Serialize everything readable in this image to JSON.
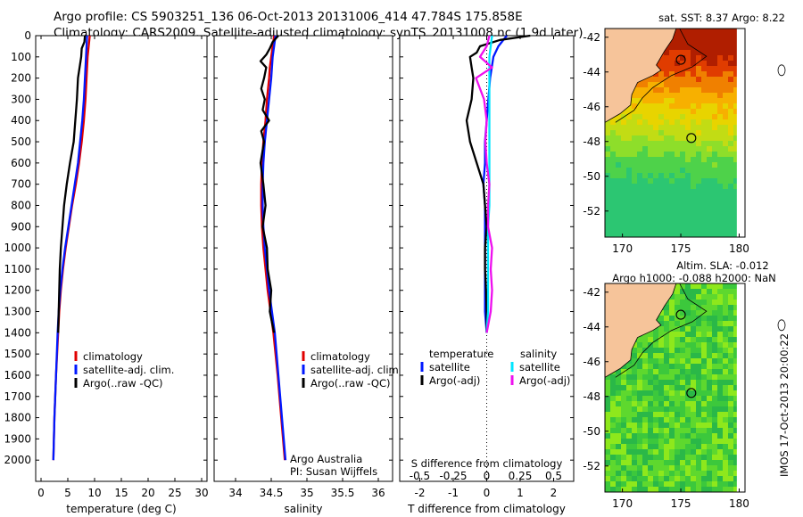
{
  "header": {
    "line1": "Argo profile: CS 5903251_136 06-Oct-2013 20131006_414 47.784S 175.858E",
    "line2": "Climatology: CARS2009. Satellite-adjusted climatology: synTS_20131008.nc (1.9d later)"
  },
  "colors": {
    "climatology": "#e00000",
    "satellite": "#0018ff",
    "argo": "#000000",
    "sal_satellite": "#00e6ff",
    "sal_argo": "#ee10ee"
  },
  "chart_data": [
    {
      "id": "temperature",
      "type": "line",
      "xlabel": "temperature (deg C)",
      "ylabel": "",
      "xlim": [
        -1,
        31
      ],
      "ylim": [
        2100,
        0
      ],
      "xticks": [
        0,
        5,
        10,
        15,
        20,
        25,
        30
      ],
      "yticks": [
        0,
        100,
        200,
        300,
        400,
        500,
        600,
        700,
        800,
        900,
        1000,
        1100,
        1200,
        1300,
        1400,
        1500,
        1600,
        1700,
        1800,
        1900,
        2000
      ],
      "legend": {
        "position": "bottom-center",
        "entries": [
          "climatology",
          "satellite-adj. clim.",
          "Argo(..raw -QC)"
        ]
      },
      "series": [
        {
          "name": "climatology",
          "y": [
            0,
            50,
            100,
            200,
            300,
            400,
            500,
            600,
            700,
            800,
            900,
            1000,
            1100,
            1200,
            1300,
            1400,
            1600,
            1800,
            2000
          ],
          "x": [
            9.1,
            8.9,
            8.7,
            8.5,
            8.3,
            8.0,
            7.6,
            7.1,
            6.5,
            5.8,
            5.2,
            4.6,
            4.1,
            3.7,
            3.4,
            3.2,
            2.8,
            2.5,
            2.3
          ]
        },
        {
          "name": "satellite-adj. clim.",
          "y": [
            0,
            50,
            100,
            200,
            300,
            400,
            500,
            600,
            700,
            800,
            900,
            1000,
            1100,
            1200,
            1300,
            1400,
            1600,
            1800,
            2000
          ],
          "x": [
            8.6,
            8.5,
            8.4,
            8.2,
            8.0,
            7.7,
            7.3,
            6.9,
            6.3,
            5.7,
            5.1,
            4.5,
            4.0,
            3.6,
            3.3,
            3.1,
            2.8,
            2.5,
            2.3
          ]
        },
        {
          "name": "Argo(..raw -QC)",
          "y": [
            0,
            30,
            60,
            100,
            150,
            200,
            300,
            400,
            500,
            600,
            700,
            800,
            900,
            1000,
            1100,
            1200,
            1300,
            1400
          ],
          "x": [
            8.2,
            8.1,
            7.6,
            7.5,
            7.2,
            6.9,
            6.7,
            6.4,
            6.1,
            5.4,
            4.8,
            4.3,
            4.0,
            3.7,
            3.5,
            3.4,
            3.3,
            3.2
          ]
        }
      ]
    },
    {
      "id": "salinity",
      "type": "line",
      "xlabel": "salinity",
      "xlim": [
        33.7,
        36.2
      ],
      "ylim": [
        2100,
        0
      ],
      "xticks": [
        34,
        34.5,
        35,
        35.5,
        36
      ],
      "legend": {
        "position": "bottom-center",
        "entries": [
          "climatology",
          "satellite-adj. clim.",
          "Argo(..raw -QC)"
        ]
      },
      "annotation": [
        "Argo Australia",
        "PI: Susan Wijffels"
      ],
      "series": [
        {
          "name": "climatology",
          "y": [
            0,
            50,
            100,
            150,
            200,
            300,
            400,
            500,
            600,
            700,
            800,
            900,
            1000,
            1100,
            1200,
            1300,
            1400,
            1600,
            1800,
            2000
          ],
          "x": [
            34.54,
            34.52,
            34.5,
            34.48,
            34.47,
            34.44,
            34.42,
            34.39,
            34.37,
            34.36,
            34.36,
            34.37,
            34.39,
            34.42,
            34.45,
            34.49,
            34.53,
            34.59,
            34.64,
            34.69
          ]
        },
        {
          "name": "satellite-adj. clim.",
          "y": [
            0,
            50,
            100,
            150,
            200,
            300,
            400,
            500,
            600,
            700,
            800,
            900,
            1000,
            1100,
            1200,
            1300,
            1400,
            1600,
            1800,
            2000
          ],
          "x": [
            34.56,
            34.54,
            34.52,
            34.51,
            34.5,
            34.47,
            34.44,
            34.41,
            34.39,
            34.38,
            34.38,
            34.39,
            34.41,
            34.44,
            34.47,
            34.51,
            34.55,
            34.6,
            34.65,
            34.7
          ]
        },
        {
          "name": "Argo(..raw -QC)",
          "y": [
            0,
            30,
            60,
            90,
            120,
            150,
            200,
            250,
            300,
            350,
            400,
            450,
            500,
            600,
            700,
            800,
            900,
            1000,
            1100,
            1200,
            1300,
            1400
          ],
          "x": [
            34.6,
            34.52,
            34.48,
            34.43,
            34.35,
            34.43,
            34.4,
            34.36,
            34.41,
            34.38,
            34.47,
            34.36,
            34.4,
            34.35,
            34.39,
            34.42,
            34.38,
            34.44,
            34.45,
            34.5,
            34.48,
            34.54
          ]
        }
      ]
    },
    {
      "id": "difference",
      "type": "line",
      "xlabel": "T difference from climatology",
      "xlabel_top": "S difference from climatology",
      "xlim": [
        -2.6,
        2.6
      ],
      "ylim": [
        2100,
        0
      ],
      "xticks": [
        -2,
        -1,
        0,
        1,
        2
      ],
      "xticks_top": [
        "-0.5",
        "-0.25",
        "0",
        "0.25",
        "0.5"
      ],
      "legend": {
        "position": "bottom-center",
        "headings": [
          "temperature",
          "salinity"
        ],
        "entries": [
          "satellite",
          "Argo(-adj)",
          "satellite",
          "Argo(-adj)"
        ]
      },
      "series": [
        {
          "name": "temperature satellite",
          "y": [
            0,
            50,
            100,
            200,
            300,
            400,
            500,
            600,
            700,
            800,
            900,
            1000,
            1100,
            1200,
            1300,
            1400
          ],
          "x": [
            0.6,
            0.35,
            0.2,
            0.1,
            0.05,
            0.0,
            -0.05,
            -0.05,
            -0.1,
            -0.05,
            -0.05,
            -0.05,
            -0.05,
            -0.05,
            -0.05,
            0.0
          ]
        },
        {
          "name": "temperature Argo(-adj)",
          "y": [
            0,
            20,
            50,
            80,
            100,
            150,
            200,
            300,
            400,
            500,
            600,
            700,
            800,
            900,
            1000,
            1100,
            1200,
            1300,
            1400
          ],
          "x": [
            1.3,
            0.4,
            -0.2,
            -0.3,
            -0.5,
            -0.45,
            -0.4,
            -0.45,
            -0.6,
            -0.5,
            -0.3,
            -0.1,
            -0.05,
            0.0,
            -0.05,
            -0.05,
            -0.02,
            0.0,
            0.0
          ]
        },
        {
          "name": "salinity satellite",
          "y": [
            0,
            50,
            100,
            200,
            300,
            400,
            500,
            600,
            700,
            800,
            900,
            1000,
            1100,
            1200,
            1300,
            1400
          ],
          "x": [
            0.04,
            0.03,
            0.02,
            0.02,
            0.02,
            0.02,
            0.02,
            0.02,
            0.02,
            0.02,
            0.01,
            0.01,
            0.01,
            0.01,
            0.01,
            0.0
          ]
        },
        {
          "name": "salinity Argo(-adj)",
          "y": [
            0,
            50,
            100,
            150,
            200,
            300,
            400,
            500,
            600,
            700,
            800,
            900,
            1000,
            1100,
            1200,
            1300,
            1400
          ],
          "x": [
            0.02,
            0.0,
            -0.05,
            0.04,
            -0.08,
            -0.02,
            0.0,
            -0.01,
            0.0,
            0.02,
            0.01,
            0.01,
            0.04,
            0.03,
            0.04,
            0.03,
            0.0
          ]
        }
      ]
    },
    {
      "id": "sst-map",
      "type": "heatmap",
      "title": "sat. SST: 8.37  Argo: 8.22",
      "xlim": [
        168.5,
        180.5
      ],
      "ylim": [
        -53.5,
        -41.5
      ],
      "xticks": [
        170,
        175,
        180
      ],
      "yticks": [
        -42,
        -44,
        -46,
        -48,
        -50,
        -52
      ],
      "markers": [
        {
          "lon": 175.0,
          "lat": -43.3
        },
        {
          "lon": 175.9,
          "lat": -47.8
        }
      ]
    },
    {
      "id": "sla-map",
      "type": "heatmap",
      "title_line1": "Altim. SLA: -0.012",
      "title_line2": "Argo h1000: -0.088  h2000: NaN",
      "xlim": [
        168.5,
        180.5
      ],
      "ylim": [
        -53.5,
        -41.5
      ],
      "xticks": [
        170,
        175,
        180
      ],
      "yticks": [
        -42,
        -44,
        -46,
        -48,
        -50,
        -52
      ],
      "markers": [
        {
          "lon": 175.0,
          "lat": -43.3
        },
        {
          "lon": 175.9,
          "lat": -47.8
        }
      ]
    }
  ],
  "watermark": "IMOS 17-Oct-2013 20:00:22"
}
